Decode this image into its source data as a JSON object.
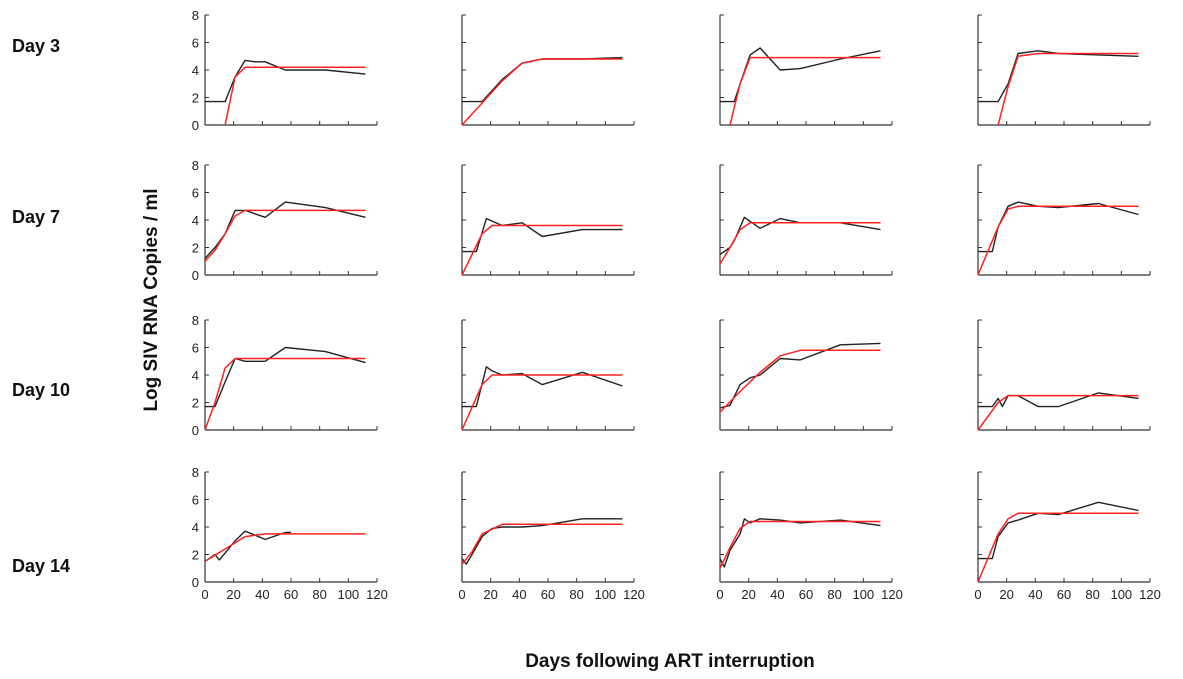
{
  "figure": {
    "xlabel": "Days following ART interruption",
    "ylabel": "Log SIV RNA Copies / ml",
    "row_labels": [
      "Day 3",
      "Day 7",
      "Day 10",
      "Day 14"
    ],
    "colors": {
      "observed": "#222222",
      "fit": "#ff2020",
      "axis": "#333333"
    }
  },
  "chart_data": [
    {
      "type": "line",
      "row": 0,
      "col": 0,
      "xlim": [
        0,
        120
      ],
      "ylim": [
        0,
        8
      ],
      "xticks": [],
      "yticks": [
        0,
        2,
        4,
        6,
        8
      ],
      "series": [
        {
          "kind": "observed",
          "x": [
            0,
            14,
            21,
            28,
            35,
            42,
            56,
            70,
            84,
            112
          ],
          "y": [
            1.7,
            1.7,
            3.5,
            4.7,
            4.6,
            4.6,
            4.0,
            4.0,
            4.0,
            3.7
          ]
        },
        {
          "kind": "fit",
          "x": [
            14,
            21,
            28,
            112
          ],
          "y": [
            0,
            3.5,
            4.2,
            4.2
          ]
        }
      ]
    },
    {
      "type": "line",
      "row": 0,
      "col": 1,
      "xlim": [
        0,
        120
      ],
      "ylim": [
        0,
        8
      ],
      "xticks": [],
      "yticks": [],
      "series": [
        {
          "kind": "observed",
          "x": [
            0,
            14,
            21,
            28,
            42,
            56,
            84,
            112
          ],
          "y": [
            1.7,
            1.7,
            2.5,
            3.3,
            4.5,
            4.8,
            4.8,
            4.9
          ]
        },
        {
          "kind": "fit",
          "x": [
            0,
            14,
            28,
            42,
            56,
            112
          ],
          "y": [
            0,
            1.6,
            3.2,
            4.5,
            4.8,
            4.8
          ]
        }
      ]
    },
    {
      "type": "line",
      "row": 0,
      "col": 2,
      "xlim": [
        0,
        120
      ],
      "ylim": [
        0,
        8
      ],
      "xticks": [],
      "yticks": [],
      "series": [
        {
          "kind": "observed",
          "x": [
            0,
            10,
            14,
            21,
            28,
            42,
            56,
            84,
            112
          ],
          "y": [
            1.7,
            1.7,
            3.0,
            5.1,
            5.6,
            4.0,
            4.1,
            4.8,
            5.4
          ]
        },
        {
          "kind": "fit",
          "x": [
            7,
            14,
            21,
            112
          ],
          "y": [
            0,
            3.0,
            4.9,
            4.9
          ]
        }
      ]
    },
    {
      "type": "line",
      "row": 0,
      "col": 3,
      "xlim": [
        0,
        120
      ],
      "ylim": [
        0,
        8
      ],
      "xticks": [],
      "yticks": [],
      "series": [
        {
          "kind": "observed",
          "x": [
            0,
            14,
            21,
            28,
            42,
            56,
            84,
            112
          ],
          "y": [
            1.7,
            1.7,
            3.0,
            5.2,
            5.4,
            5.2,
            5.1,
            5.0
          ]
        },
        {
          "kind": "fit",
          "x": [
            14,
            21,
            28,
            42,
            112
          ],
          "y": [
            0,
            2.8,
            5.0,
            5.2,
            5.2
          ]
        }
      ]
    },
    {
      "type": "line",
      "row": 1,
      "col": 0,
      "xlim": [
        0,
        120
      ],
      "ylim": [
        0,
        8
      ],
      "xticks": [],
      "yticks": [
        0,
        2,
        4,
        6,
        8
      ],
      "series": [
        {
          "kind": "observed",
          "x": [
            0,
            7,
            14,
            21,
            28,
            42,
            56,
            84,
            112
          ],
          "y": [
            1.2,
            2.0,
            3.0,
            4.7,
            4.7,
            4.2,
            5.3,
            4.9,
            4.2
          ]
        },
        {
          "kind": "fit",
          "x": [
            0,
            7,
            14,
            21,
            28,
            112
          ],
          "y": [
            1.0,
            1.8,
            3.0,
            4.3,
            4.7,
            4.7
          ]
        }
      ]
    },
    {
      "type": "line",
      "row": 1,
      "col": 1,
      "xlim": [
        0,
        120
      ],
      "ylim": [
        0,
        8
      ],
      "xticks": [],
      "yticks": [],
      "series": [
        {
          "kind": "observed",
          "x": [
            0,
            10,
            17,
            28,
            42,
            56,
            84,
            112
          ],
          "y": [
            1.7,
            1.7,
            4.1,
            3.6,
            3.8,
            2.8,
            3.3,
            3.3
          ]
        },
        {
          "kind": "fit",
          "x": [
            0,
            14,
            21,
            112
          ],
          "y": [
            0,
            3.0,
            3.6,
            3.6
          ]
        }
      ]
    },
    {
      "type": "line",
      "row": 1,
      "col": 2,
      "xlim": [
        0,
        120
      ],
      "ylim": [
        0,
        8
      ],
      "xticks": [],
      "yticks": [],
      "series": [
        {
          "kind": "observed",
          "x": [
            0,
            7,
            10,
            17,
            28,
            42,
            56,
            84,
            112
          ],
          "y": [
            1.5,
            2.0,
            2.5,
            4.2,
            3.4,
            4.1,
            3.8,
            3.8,
            3.3
          ]
        },
        {
          "kind": "fit",
          "x": [
            0,
            7,
            14,
            21,
            112
          ],
          "y": [
            0.8,
            2.0,
            3.3,
            3.8,
            3.8
          ]
        }
      ]
    },
    {
      "type": "line",
      "row": 1,
      "col": 3,
      "xlim": [
        0,
        120
      ],
      "ylim": [
        0,
        8
      ],
      "xticks": [],
      "yticks": [],
      "series": [
        {
          "kind": "observed",
          "x": [
            0,
            10,
            14,
            21,
            28,
            42,
            56,
            84,
            112
          ],
          "y": [
            1.7,
            1.7,
            3.5,
            5.0,
            5.3,
            5.0,
            4.9,
            5.2,
            4.4
          ]
        },
        {
          "kind": "fit",
          "x": [
            0,
            14,
            21,
            28,
            112
          ],
          "y": [
            0,
            3.5,
            4.8,
            5.0,
            5.0
          ]
        }
      ]
    },
    {
      "type": "line",
      "row": 2,
      "col": 0,
      "xlim": [
        0,
        120
      ],
      "ylim": [
        0,
        8
      ],
      "xticks": [],
      "yticks": [
        0,
        2,
        4,
        6,
        8
      ],
      "series": [
        {
          "kind": "observed",
          "x": [
            0,
            7,
            14,
            21,
            28,
            42,
            56,
            84,
            112
          ],
          "y": [
            1.7,
            1.7,
            3.5,
            5.2,
            5.0,
            5.0,
            6.0,
            5.7,
            4.9
          ]
        },
        {
          "kind": "fit",
          "x": [
            0,
            7,
            14,
            21,
            112
          ],
          "y": [
            0,
            2.0,
            4.5,
            5.2,
            5.2
          ]
        }
      ]
    },
    {
      "type": "line",
      "row": 2,
      "col": 1,
      "xlim": [
        0,
        120
      ],
      "ylim": [
        0,
        8
      ],
      "xticks": [],
      "yticks": [],
      "series": [
        {
          "kind": "observed",
          "x": [
            0,
            10,
            17,
            21,
            28,
            42,
            56,
            84,
            112
          ],
          "y": [
            1.7,
            1.7,
            4.6,
            4.3,
            4.0,
            4.1,
            3.3,
            4.2,
            3.2
          ]
        },
        {
          "kind": "fit",
          "x": [
            0,
            14,
            21,
            112
          ],
          "y": [
            0,
            3.3,
            4.0,
            4.0
          ]
        }
      ]
    },
    {
      "type": "line",
      "row": 2,
      "col": 2,
      "xlim": [
        0,
        120
      ],
      "ylim": [
        0,
        8
      ],
      "xticks": [],
      "yticks": [],
      "series": [
        {
          "kind": "observed",
          "x": [
            0,
            7,
            14,
            21,
            28,
            42,
            56,
            84,
            112
          ],
          "y": [
            1.6,
            1.8,
            3.3,
            3.8,
            4.0,
            5.2,
            5.1,
            6.2,
            6.3
          ]
        },
        {
          "kind": "fit",
          "x": [
            0,
            14,
            28,
            42,
            56,
            112
          ],
          "y": [
            1.3,
            2.8,
            4.2,
            5.4,
            5.8,
            5.8
          ]
        }
      ]
    },
    {
      "type": "line",
      "row": 2,
      "col": 3,
      "xlim": [
        0,
        120
      ],
      "ylim": [
        0,
        8
      ],
      "xticks": [],
      "yticks": [],
      "series": [
        {
          "kind": "observed",
          "x": [
            0,
            10,
            14,
            17,
            21,
            28,
            42,
            56,
            84,
            112
          ],
          "y": [
            1.7,
            1.7,
            2.3,
            1.7,
            2.5,
            2.5,
            1.7,
            1.7,
            2.7,
            2.3
          ]
        },
        {
          "kind": "fit",
          "x": [
            0,
            14,
            21,
            112
          ],
          "y": [
            0,
            2.0,
            2.5,
            2.5
          ]
        }
      ]
    },
    {
      "type": "line",
      "row": 3,
      "col": 0,
      "xlim": [
        0,
        120
      ],
      "ylim": [
        0,
        8
      ],
      "xticks": [
        0,
        20,
        40,
        60,
        80,
        100,
        120
      ],
      "yticks": [
        0,
        2,
        4,
        6,
        8
      ],
      "series": [
        {
          "kind": "observed",
          "x": [
            0,
            7,
            10,
            14,
            21,
            28,
            42,
            56,
            60
          ],
          "y": [
            1.5,
            2.0,
            1.6,
            2.1,
            3.0,
            3.7,
            3.1,
            3.6,
            3.6
          ]
        },
        {
          "kind": "fit",
          "x": [
            0,
            14,
            28,
            42,
            112
          ],
          "y": [
            1.5,
            2.4,
            3.3,
            3.5,
            3.5
          ]
        }
      ]
    },
    {
      "type": "line",
      "row": 3,
      "col": 1,
      "xlim": [
        0,
        120
      ],
      "ylim": [
        0,
        8
      ],
      "xticks": [
        0,
        20,
        40,
        60,
        80,
        100,
        120
      ],
      "yticks": [],
      "series": [
        {
          "kind": "observed",
          "x": [
            0,
            3,
            7,
            14,
            21,
            28,
            42,
            56,
            84,
            112
          ],
          "y": [
            1.7,
            1.3,
            2.0,
            3.3,
            3.9,
            4.0,
            4.0,
            4.1,
            4.6,
            4.6
          ]
        },
        {
          "kind": "fit",
          "x": [
            0,
            7,
            14,
            28,
            112
          ],
          "y": [
            1.3,
            2.2,
            3.5,
            4.2,
            4.2
          ]
        }
      ]
    },
    {
      "type": "line",
      "row": 3,
      "col": 2,
      "xlim": [
        0,
        120
      ],
      "ylim": [
        0,
        8
      ],
      "xticks": [
        0,
        20,
        40,
        60,
        80,
        100,
        120
      ],
      "yticks": [],
      "series": [
        {
          "kind": "observed",
          "x": [
            0,
            3,
            7,
            14,
            17,
            21,
            28,
            42,
            56,
            84,
            112
          ],
          "y": [
            1.7,
            1.1,
            2.3,
            3.5,
            4.6,
            4.3,
            4.6,
            4.5,
            4.3,
            4.5,
            4.1
          ]
        },
        {
          "kind": "fit",
          "x": [
            0,
            7,
            14,
            21,
            112
          ],
          "y": [
            1.0,
            2.5,
            3.9,
            4.4,
            4.4
          ]
        }
      ]
    },
    {
      "type": "line",
      "row": 3,
      "col": 3,
      "xlim": [
        0,
        120
      ],
      "ylim": [
        0,
        8
      ],
      "xticks": [
        0,
        20,
        40,
        60,
        80,
        100,
        120
      ],
      "yticks": [],
      "series": [
        {
          "kind": "observed",
          "x": [
            0,
            10,
            14,
            21,
            28,
            42,
            56,
            84,
            112
          ],
          "y": [
            1.7,
            1.7,
            3.3,
            4.3,
            4.5,
            5.0,
            4.9,
            5.8,
            5.2
          ]
        },
        {
          "kind": "fit",
          "x": [
            0,
            14,
            21,
            28,
            112
          ],
          "y": [
            0,
            3.5,
            4.6,
            5.0,
            5.0
          ]
        }
      ]
    }
  ]
}
